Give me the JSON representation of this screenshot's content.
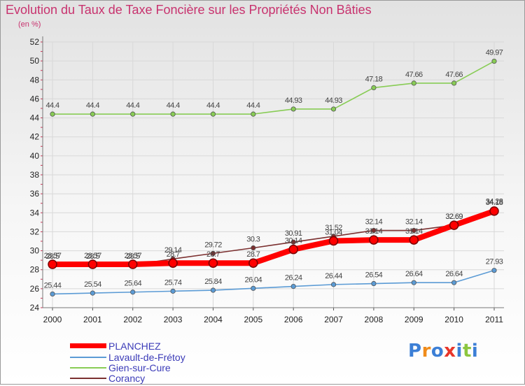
{
  "header": {
    "title": "Evolution du Taux de Taxe Foncière sur les Propriétés Non Bâties",
    "unit_label": "(en %)"
  },
  "chart_data": {
    "type": "line",
    "title": "Evolution du Taux de Taxe Foncière sur les Propriétés Non Bâties",
    "ylabel": "(en %)",
    "xlabel": "",
    "ylim": [
      24,
      52
    ],
    "y_ticks": [
      "24",
      "26",
      "28",
      "30",
      "32",
      "34",
      "36",
      "38",
      "40",
      "42",
      "44",
      "46",
      "48",
      "50",
      "52"
    ],
    "grid": true,
    "legend_position": "bottom-left",
    "categories": [
      "2000",
      "2001",
      "2002",
      "2003",
      "2004",
      "2005",
      "2006",
      "2007",
      "2008",
      "2009",
      "2010",
      "2011"
    ],
    "series": [
      {
        "name": "PLANCHEZ",
        "color": "#ff0000",
        "emphasis": true,
        "values": [
          28.57,
          28.57,
          28.57,
          28.7,
          28.7,
          28.7,
          30.14,
          31.04,
          31.14,
          31.14,
          32.69,
          34.18
        ],
        "labels": [
          "28.57",
          "28.57",
          "28.57",
          "28.7",
          "28.7",
          "28.7",
          "30.14",
          "31.04",
          "31.14",
          "31.14",
          "32.69",
          "34.18"
        ]
      },
      {
        "name": "Lavault-de-Frétoy",
        "color": "#5b9bd5",
        "values": [
          25.44,
          25.54,
          25.64,
          25.74,
          25.84,
          26.04,
          26.24,
          26.44,
          26.54,
          26.64,
          26.64,
          27.93
        ],
        "labels": [
          "25.44",
          "25.54",
          "25.64",
          "25.74",
          "25.84",
          "26.04",
          "26.24",
          "26.44",
          "26.54",
          "26.64",
          "26.64",
          "27.93"
        ]
      },
      {
        "name": "Gien-sur-Cure",
        "color": "#88cc55",
        "values": [
          44.4,
          44.4,
          44.4,
          44.4,
          44.4,
          44.4,
          44.93,
          44.93,
          47.18,
          47.66,
          47.66,
          49.97
        ],
        "labels": [
          "44.4",
          "44.4",
          "44.4",
          "44.4",
          "44.4",
          "44.4",
          "44.93",
          "44.93",
          "47.18",
          "47.66",
          "47.66",
          "49.97"
        ]
      },
      {
        "name": "Corancy",
        "color": "#7b3030",
        "values": [
          28.5,
          28.5,
          28.5,
          29.14,
          29.72,
          30.3,
          30.91,
          31.52,
          32.14,
          32.14,
          32.69,
          34.28
        ],
        "labels": [
          "28.5",
          "28.5",
          "28.5",
          "29.14",
          "29.72",
          "30.3",
          "30.91",
          "31.52",
          "32.14",
          "32.14",
          "32.69",
          "34.28"
        ]
      }
    ]
  },
  "legend": {
    "items": [
      {
        "label": "PLANCHEZ",
        "color": "#ff0000"
      },
      {
        "label": "Lavault-de-Frétoy",
        "color": "#5b9bd5"
      },
      {
        "label": "Gien-sur-Cure",
        "color": "#88cc55"
      },
      {
        "label": "Corancy",
        "color": "#7b3030"
      }
    ]
  },
  "logo": {
    "text": "Proxiti",
    "letter_colors": [
      "#3c7fd6",
      "#f08c1a",
      "#3c7fd6",
      "#e8362a",
      "#3c7fd6",
      "#8cc63f",
      "#3c7fd6"
    ]
  }
}
